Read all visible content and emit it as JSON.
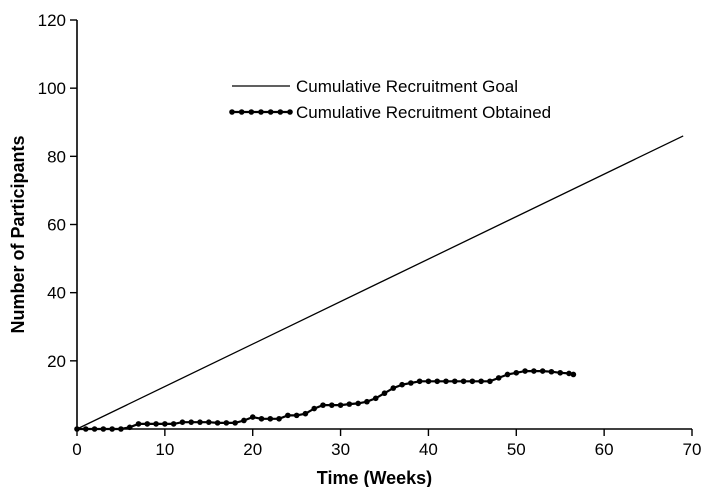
{
  "chart_data": {
    "type": "line",
    "title": "",
    "xlabel": "Time (Weeks)",
    "ylabel": "Number of Participants",
    "xlim": [
      0,
      70
    ],
    "ylim": [
      0,
      120
    ],
    "x_ticks": [
      0,
      10,
      20,
      30,
      40,
      50,
      60,
      70
    ],
    "y_ticks": [
      20,
      40,
      60,
      80,
      100,
      120
    ],
    "grid": false,
    "legend_position": "top-center",
    "series": [
      {
        "name": "Cumulative Recruitment Goal",
        "style": "solid-line",
        "x": [
          0,
          69
        ],
        "y": [
          0,
          86
        ]
      },
      {
        "name": "Cumulative Recruitment Obtained",
        "style": "line-with-dot-markers",
        "x": [
          0,
          1,
          2,
          3,
          4,
          5,
          6,
          7,
          8,
          9,
          10,
          11,
          12,
          13,
          14,
          15,
          16,
          17,
          18,
          19,
          20,
          21,
          22,
          23,
          24,
          25,
          26,
          27,
          28,
          29,
          30,
          31,
          32,
          33,
          34,
          35,
          36,
          37,
          38,
          39,
          40,
          41,
          42,
          43,
          44,
          45,
          46,
          47,
          48,
          49,
          50,
          51,
          52,
          53,
          54,
          55,
          56,
          56.5
        ],
        "y": [
          0,
          0,
          0,
          0,
          0,
          0,
          0.5,
          1.5,
          1.5,
          1.5,
          1.5,
          1.5,
          2,
          2,
          2,
          2,
          1.8,
          1.8,
          1.8,
          2.5,
          3.5,
          3,
          3,
          3,
          4,
          4,
          4.5,
          6,
          7,
          7,
          7,
          7.3,
          7.5,
          8,
          9,
          10.5,
          12,
          13,
          13.5,
          14,
          14,
          14,
          14,
          14,
          14,
          14,
          14,
          14,
          15,
          16,
          16.5,
          17,
          17,
          17,
          16.8,
          16.5,
          16.3,
          16
        ]
      }
    ]
  }
}
